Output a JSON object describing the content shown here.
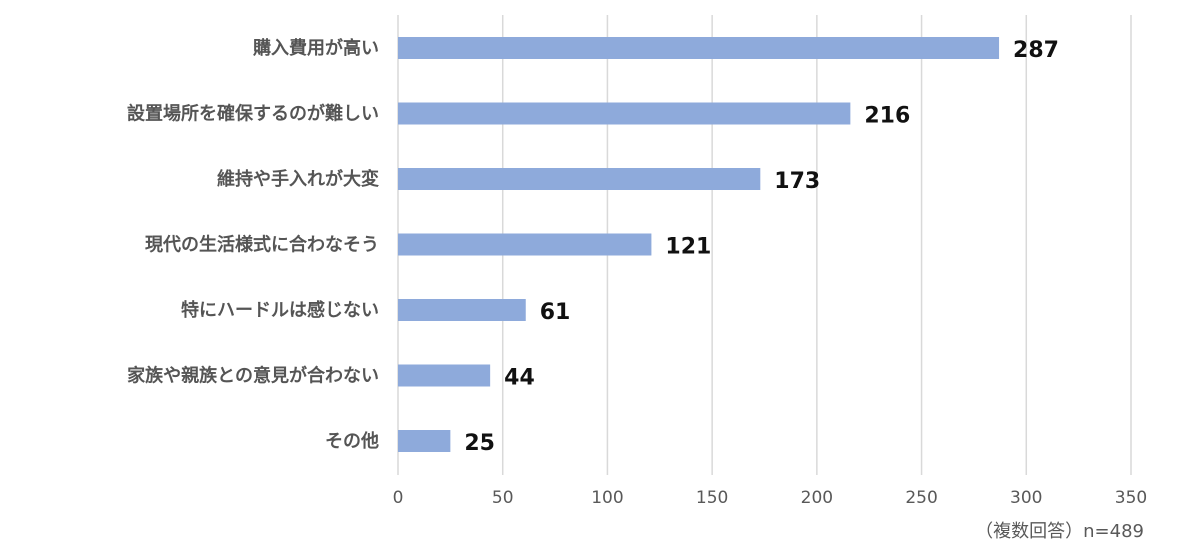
{
  "chart_data": {
    "type": "bar",
    "orientation": "horizontal",
    "categories": [
      "購入費用が高い",
      "設置場所を確保するのが難しい",
      "維持や手入れが大変",
      "現代の生活様式に合わなそう",
      "特にハードルは感じない",
      "家族や親族との意見が合わない",
      "その他"
    ],
    "values": [
      287,
      216,
      173,
      121,
      61,
      44,
      25
    ],
    "xlim": [
      0,
      350
    ],
    "xticks": [
      0,
      50,
      100,
      150,
      200,
      250,
      300,
      350
    ],
    "grid": "vertical",
    "bar_color": "#8eaadb",
    "grid_color": "#d9d9d9",
    "data_labels": true
  },
  "note": "（複数回答）n=489"
}
